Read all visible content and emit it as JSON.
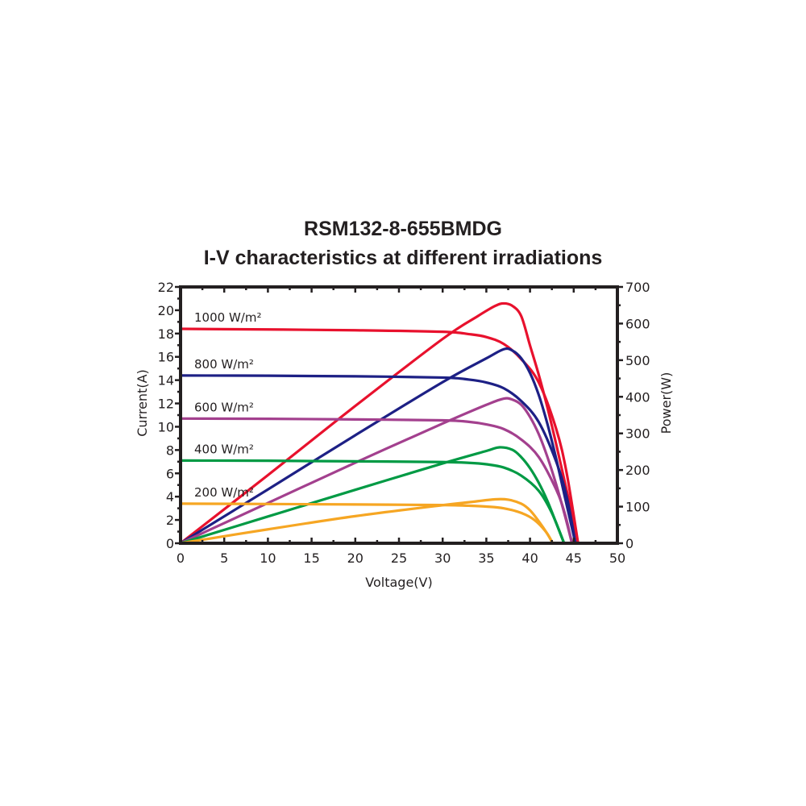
{
  "chart_data": {
    "type": "line",
    "title": "RSM132-8-655BMDG",
    "subtitle": "I-V characteristics at different irradiations",
    "xlabel": "Voltage(V)",
    "ylabel": "Current(A)",
    "y2label": "Power(W)",
    "xlim": [
      0,
      50
    ],
    "ylim": [
      0,
      22
    ],
    "y2lim": [
      0,
      700
    ],
    "xticks": [
      "0",
      "5",
      "10",
      "15",
      "20",
      "25",
      "30",
      "35",
      "40",
      "45",
      "50"
    ],
    "yticks": [
      "0",
      "2",
      "4",
      "6",
      "8",
      "10",
      "12",
      "14",
      "16",
      "18",
      "20",
      "22"
    ],
    "y2ticks": [
      "0",
      "100",
      "200",
      "300",
      "400",
      "500",
      "600",
      "700"
    ],
    "grid": false,
    "series": [
      {
        "name": "1000 W/m²",
        "color": "#e8112d",
        "label_current": 18.4,
        "iv": [
          [
            0,
            18.4
          ],
          [
            10,
            18.35
          ],
          [
            20,
            18.28
          ],
          [
            30,
            18.15
          ],
          [
            33,
            17.95
          ],
          [
            35,
            17.7
          ],
          [
            37,
            17.1
          ],
          [
            39,
            15.8
          ],
          [
            41,
            13.8
          ],
          [
            43,
            9.8
          ],
          [
            44.2,
            6
          ],
          [
            45.5,
            0
          ]
        ],
        "power": [
          [
            0,
            0
          ],
          [
            10,
            186
          ],
          [
            20,
            375
          ],
          [
            30,
            558
          ],
          [
            34,
            620
          ],
          [
            36,
            648
          ],
          [
            37,
            655
          ],
          [
            38,
            648
          ],
          [
            39,
            620
          ],
          [
            40,
            540
          ],
          [
            41,
            460
          ],
          [
            42,
            370
          ],
          [
            43,
            270
          ],
          [
            44,
            165
          ],
          [
            45,
            60
          ],
          [
            45.5,
            0
          ]
        ]
      },
      {
        "name": "800 W/m²",
        "color": "#1d2085",
        "label_current": 14.4,
        "iv": [
          [
            0,
            14.4
          ],
          [
            10,
            14.38
          ],
          [
            20,
            14.33
          ],
          [
            30,
            14.22
          ],
          [
            33,
            14.05
          ],
          [
            35,
            13.8
          ],
          [
            37,
            13.3
          ],
          [
            39,
            12.2
          ],
          [
            41,
            10.4
          ],
          [
            43,
            7
          ],
          [
            44.2,
            4
          ],
          [
            45.2,
            0
          ]
        ],
        "power": [
          [
            0,
            0
          ],
          [
            10,
            147
          ],
          [
            20,
            295
          ],
          [
            30,
            440
          ],
          [
            35,
            505
          ],
          [
            37,
            530
          ],
          [
            38,
            526
          ],
          [
            39,
            505
          ],
          [
            40,
            465
          ],
          [
            41,
            405
          ],
          [
            42,
            325
          ],
          [
            43,
            230
          ],
          [
            44,
            125
          ],
          [
            45.2,
            0
          ]
        ]
      },
      {
        "name": "600 W/m²",
        "color": "#a3408e",
        "label_current": 10.7,
        "iv": [
          [
            0,
            10.7
          ],
          [
            10,
            10.68
          ],
          [
            20,
            10.63
          ],
          [
            30,
            10.55
          ],
          [
            33,
            10.42
          ],
          [
            35,
            10.2
          ],
          [
            37,
            9.8
          ],
          [
            39,
            8.9
          ],
          [
            41,
            7.4
          ],
          [
            43,
            4.6
          ],
          [
            44,
            2.5
          ],
          [
            44.8,
            0
          ]
        ],
        "power": [
          [
            0,
            0
          ],
          [
            10,
            110
          ],
          [
            20,
            220
          ],
          [
            30,
            327
          ],
          [
            35,
            378
          ],
          [
            37,
            395
          ],
          [
            38,
            392
          ],
          [
            39,
            378
          ],
          [
            40,
            345
          ],
          [
            41,
            298
          ],
          [
            42,
            235
          ],
          [
            43,
            160
          ],
          [
            44,
            75
          ],
          [
            44.8,
            0
          ]
        ]
      },
      {
        "name": "400 W/m²",
        "color": "#009a44",
        "label_current": 7.1,
        "iv": [
          [
            0,
            7.1
          ],
          [
            10,
            7.08
          ],
          [
            20,
            7.03
          ],
          [
            30,
            6.97
          ],
          [
            33,
            6.9
          ],
          [
            35,
            6.78
          ],
          [
            37,
            6.5
          ],
          [
            39,
            5.8
          ],
          [
            41,
            4.5
          ],
          [
            42.5,
            2.6
          ],
          [
            43.9,
            0
          ]
        ],
        "power": [
          [
            0,
            0
          ],
          [
            10,
            73
          ],
          [
            20,
            146
          ],
          [
            30,
            218
          ],
          [
            35,
            252
          ],
          [
            36.5,
            262
          ],
          [
            38,
            255
          ],
          [
            39,
            235
          ],
          [
            40,
            205
          ],
          [
            41,
            165
          ],
          [
            42,
            115
          ],
          [
            43,
            55
          ],
          [
            43.9,
            0
          ]
        ]
      },
      {
        "name": "200 W/m²",
        "color": "#f6a623",
        "label_current": 3.4,
        "iv": [
          [
            0,
            3.4
          ],
          [
            10,
            3.37
          ],
          [
            20,
            3.33
          ],
          [
            30,
            3.28
          ],
          [
            33,
            3.22
          ],
          [
            35,
            3.15
          ],
          [
            37,
            3.0
          ],
          [
            39,
            2.6
          ],
          [
            40.5,
            2.0
          ],
          [
            41.8,
            1.0
          ],
          [
            42.6,
            0
          ]
        ],
        "power": [
          [
            0,
            0
          ],
          [
            10,
            38
          ],
          [
            20,
            74
          ],
          [
            30,
            104
          ],
          [
            33,
            112
          ],
          [
            36,
            120
          ],
          [
            37.5,
            119
          ],
          [
            39,
            108
          ],
          [
            40,
            90
          ],
          [
            41,
            60
          ],
          [
            42,
            25
          ],
          [
            42.6,
            0
          ]
        ]
      }
    ]
  }
}
